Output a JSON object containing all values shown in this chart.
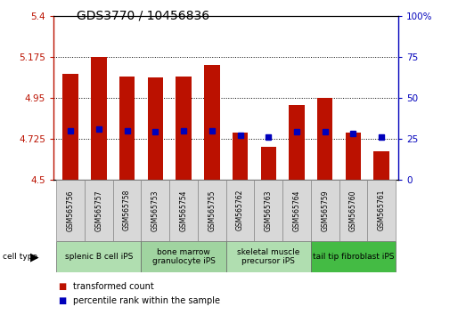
{
  "title": "GDS3770 / 10456836",
  "samples": [
    "GSM565756",
    "GSM565757",
    "GSM565758",
    "GSM565753",
    "GSM565754",
    "GSM565755",
    "GSM565762",
    "GSM565763",
    "GSM565764",
    "GSM565759",
    "GSM565760",
    "GSM565761"
  ],
  "transformed_counts": [
    5.08,
    5.175,
    5.065,
    5.06,
    5.065,
    5.13,
    4.76,
    4.68,
    4.91,
    4.95,
    4.76,
    4.655
  ],
  "percentile_ranks": [
    30,
    31,
    30,
    29,
    30,
    30,
    27,
    26,
    29,
    29,
    28,
    26
  ],
  "groups": [
    {
      "label": "splenic B cell iPS",
      "indices": [
        0,
        1,
        2
      ],
      "color": "#b0deb0"
    },
    {
      "label": "bone marrow\ngranulocyte iPS",
      "indices": [
        3,
        4,
        5
      ],
      "color": "#a0d4a0"
    },
    {
      "label": "skeletal muscle\nprecursor iPS",
      "indices": [
        6,
        7,
        8
      ],
      "color": "#b0deb0"
    },
    {
      "label": "tail tip fibroblast iPS",
      "indices": [
        9,
        10,
        11
      ],
      "color": "#44bb44"
    }
  ],
  "ymin": 4.5,
  "ymax": 5.4,
  "yticks": [
    4.5,
    4.725,
    4.95,
    5.175,
    5.4
  ],
  "ytick_labels": [
    "4.5",
    "4.725",
    "4.95",
    "5.175",
    "5.4"
  ],
  "right_yticks": [
    0,
    25,
    50,
    75,
    100
  ],
  "right_ytick_labels": [
    "0",
    "25",
    "50",
    "75",
    "100%"
  ],
  "bar_color": "#bb1100",
  "dot_color": "#0000bb",
  "bar_width": 0.55,
  "cell_type_label": "cell type",
  "legend_items": [
    "transformed count",
    "percentile rank within the sample"
  ],
  "legend_colors": [
    "#bb1100",
    "#0000bb"
  ],
  "sample_box_color": "#d8d8d8",
  "title_fontsize": 10,
  "axis_fontsize": 7.5,
  "sample_fontsize": 5.5,
  "group_fontsize": 6.5,
  "legend_fontsize": 7
}
